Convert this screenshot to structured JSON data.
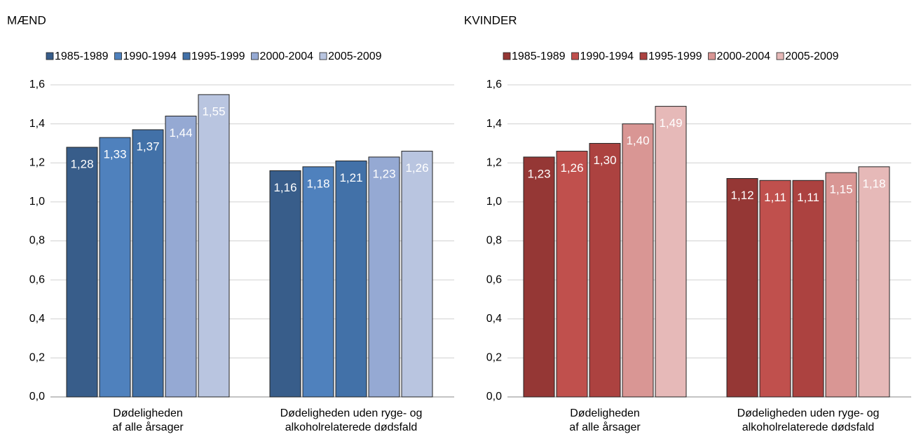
{
  "chart_data": [
    {
      "type": "bar",
      "title": "MÆND",
      "categories": [
        "Dødeligheden\naf alle årsager",
        "Dødeligheden uden ryge- og\nalkoholrelaterede dødsfald"
      ],
      "series": [
        {
          "name": "1985-1989",
          "color": "#385d8a",
          "values": [
            1.28,
            1.16
          ],
          "value_labels": [
            "1,28",
            "1,16"
          ]
        },
        {
          "name": "1990-1994",
          "color": "#4f81bd",
          "values": [
            1.33,
            1.18
          ],
          "value_labels": [
            "1,33",
            "1,18"
          ]
        },
        {
          "name": "1995-1999",
          "color": "#4271a8",
          "values": [
            1.37,
            1.21
          ],
          "value_labels": [
            "1,37",
            "1,21"
          ]
        },
        {
          "name": "2000-2004",
          "color": "#95a9d3",
          "values": [
            1.44,
            1.23
          ],
          "value_labels": [
            "1,44",
            "1,23"
          ]
        },
        {
          "name": "2005-2009",
          "color": "#b9c5e0",
          "values": [
            1.55,
            1.26
          ],
          "value_labels": [
            "1,55",
            "1,26"
          ]
        }
      ],
      "ylim": [
        0,
        1.6
      ],
      "yticks": [
        {
          "value": 0,
          "label": "0,0"
        },
        {
          "value": 0.2,
          "label": "0,2"
        },
        {
          "value": 0.4,
          "label": "0,4"
        },
        {
          "value": 0.6,
          "label": "0,6"
        },
        {
          "value": 0.8,
          "label": "0,8"
        },
        {
          "value": 1.0,
          "label": "1,0"
        },
        {
          "value": 1.2,
          "label": "1,2"
        },
        {
          "value": 1.4,
          "label": "1,4"
        },
        {
          "value": 1.6,
          "label": "1,6"
        }
      ],
      "grid": true,
      "legend": "top"
    },
    {
      "type": "bar",
      "title": "KVINDER",
      "categories": [
        "Dødeligheden\naf alle årsager",
        "Dødeligheden uden ryge- og\nalkoholrelaterede dødsfald"
      ],
      "series": [
        {
          "name": "1985-1989",
          "color": "#953735",
          "values": [
            1.23,
            1.12
          ],
          "value_labels": [
            "1,23",
            "1,12"
          ]
        },
        {
          "name": "1990-1994",
          "color": "#c0504d",
          "values": [
            1.26,
            1.11
          ],
          "value_labels": [
            "1,26",
            "1,11"
          ]
        },
        {
          "name": "1995-1999",
          "color": "#ac4240",
          "values": [
            1.3,
            1.11
          ],
          "value_labels": [
            "1,30",
            "1,11"
          ]
        },
        {
          "name": "2000-2004",
          "color": "#d99694",
          "values": [
            1.4,
            1.15
          ],
          "value_labels": [
            "1,40",
            "1,15"
          ]
        },
        {
          "name": "2005-2009",
          "color": "#e6b9b8",
          "values": [
            1.49,
            1.18
          ],
          "value_labels": [
            "1,49",
            "1,18"
          ]
        }
      ],
      "ylim": [
        0,
        1.6
      ],
      "yticks": [
        {
          "value": 0,
          "label": "0,0"
        },
        {
          "value": 0.2,
          "label": "0,2"
        },
        {
          "value": 0.4,
          "label": "0,4"
        },
        {
          "value": 0.6,
          "label": "0,6"
        },
        {
          "value": 0.8,
          "label": "0,8"
        },
        {
          "value": 1.0,
          "label": "1,0"
        },
        {
          "value": 1.2,
          "label": "1,2"
        },
        {
          "value": 1.4,
          "label": "1,4"
        },
        {
          "value": 1.6,
          "label": "1,6"
        }
      ],
      "grid": true,
      "legend": "top"
    }
  ]
}
